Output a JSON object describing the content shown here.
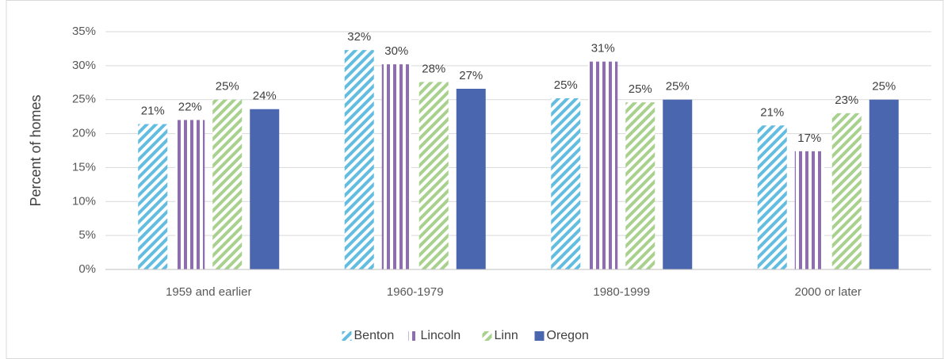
{
  "chart_data": {
    "type": "bar",
    "y_label": "Percent of homes",
    "categories": [
      "1959 and earlier",
      "1960-1979",
      "1980-1999",
      "2000 or later"
    ],
    "series": [
      {
        "name": "Benton",
        "color": "#63bde0",
        "pattern": "diagonal",
        "values": [
          21.4,
          32.3,
          25.2,
          21.2
        ],
        "value_labels": [
          "21%",
          "32%",
          "25%",
          "21%"
        ]
      },
      {
        "name": "Lincoln",
        "color": "#8d6fae",
        "pattern": "vertical",
        "values": [
          22,
          30.2,
          30.6,
          17.4
        ],
        "value_labels": [
          "22%",
          "30%",
          "31%",
          "17%"
        ]
      },
      {
        "name": "Linn",
        "color": "#a9d18e",
        "pattern": "diagonal",
        "values": [
          25,
          27.6,
          24.6,
          23
        ],
        "value_labels": [
          "25%",
          "28%",
          "25%",
          "23%"
        ]
      },
      {
        "name": "Oregon",
        "color": "#4a66ae",
        "pattern": "solid",
        "values": [
          23.6,
          26.6,
          25,
          25
        ],
        "value_labels": [
          "24%",
          "27%",
          "25%",
          "25%"
        ]
      }
    ],
    "ylim": [
      0,
      35
    ],
    "yticks": [
      {
        "value": 0,
        "label": "0%"
      },
      {
        "value": 5,
        "label": "5%"
      },
      {
        "value": 10,
        "label": "10%"
      },
      {
        "value": 15,
        "label": "15%"
      },
      {
        "value": 20,
        "label": "20%"
      },
      {
        "value": 25,
        "label": "25%"
      },
      {
        "value": 30,
        "label": "30%"
      },
      {
        "value": 35,
        "label": "35%"
      }
    ],
    "grid": true,
    "legend": "bottom"
  }
}
